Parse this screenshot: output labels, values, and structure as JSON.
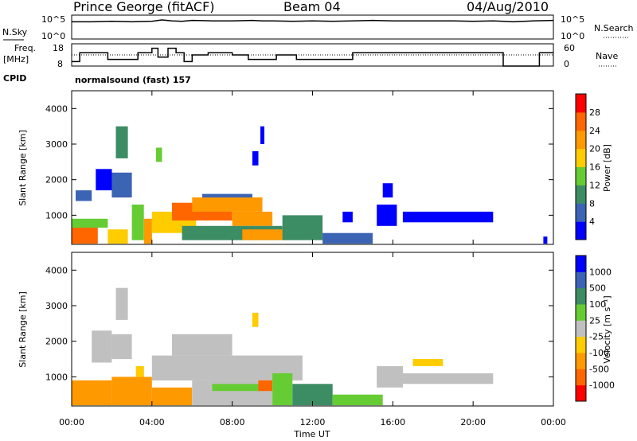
{
  "header": {
    "station": "Prince George (fitACF)",
    "beam": "Beam 04",
    "date": "04/Aug/2010"
  },
  "upper_labels": {
    "nsky": "N.Sky",
    "nsearch": "N.Search",
    "freq": "Freq.",
    "freq_unit": "[MHz]",
    "nave": "Nave",
    "cpid": "CPID",
    "cpid_value": "normalsound (fast) 157",
    "noise_left_top": "10^5",
    "noise_left_bot": "10^0",
    "noise_right_top": "10^5",
    "noise_right_bot": "10^0",
    "freq_top": "18",
    "freq_bot": "8",
    "nave_top": "60",
    "nave_bot": "0"
  },
  "colors": {
    "power": [
      "#0000ff",
      "#3c64b4",
      "#3c8c64",
      "#66cc33",
      "#ffcc00",
      "#ff9900",
      "#ff6600",
      "#ff0000"
    ],
    "velocity": [
      "#ff0000",
      "#ff6600",
      "#ff9900",
      "#ffcc00",
      "#c0c0c0",
      "#66cc33",
      "#3c8c64",
      "#3c64b4",
      "#0000ff"
    ],
    "noise_line": "#000000"
  },
  "chart_data": [
    {
      "type": "line",
      "name": "noise-and-frequency-strip",
      "x_hours": [
        0,
        1,
        2,
        3,
        4,
        4.5,
        5,
        5.5,
        6,
        7,
        8,
        9,
        9.5,
        10,
        11,
        12,
        13,
        14,
        15,
        16,
        17,
        18,
        19,
        20,
        21,
        21.5,
        22,
        23,
        24
      ],
      "nsky_log10": [
        3.6,
        3.6,
        3.7,
        3.6,
        3.7,
        4.0,
        3.8,
        3.7,
        3.9,
        3.8,
        3.8,
        3.9,
        3.8,
        3.8,
        3.7,
        3.8,
        3.7,
        3.8,
        3.9,
        3.8,
        3.8,
        3.8,
        3.8,
        3.7,
        3.8,
        3.7,
        3.6,
        3.8,
        3.9
      ],
      "freq_step": [
        {
          "x0": 0,
          "x1": 0.4,
          "mhz": 10
        },
        {
          "x0": 0.4,
          "x1": 1.8,
          "mhz": 14
        },
        {
          "x0": 1.8,
          "x1": 2.6,
          "mhz": 11
        },
        {
          "x0": 2.6,
          "x1": 3.3,
          "mhz": 11
        },
        {
          "x0": 3.3,
          "x1": 4.0,
          "mhz": 14
        },
        {
          "x0": 4.0,
          "x1": 4.3,
          "mhz": 16
        },
        {
          "x0": 4.3,
          "x1": 4.8,
          "mhz": 12
        },
        {
          "x0": 4.8,
          "x1": 5.2,
          "mhz": 16
        },
        {
          "x0": 5.2,
          "x1": 5.6,
          "mhz": 14
        },
        {
          "x0": 5.6,
          "x1": 6.0,
          "mhz": 10
        },
        {
          "x0": 6.0,
          "x1": 6.8,
          "mhz": 13
        },
        {
          "x0": 6.8,
          "x1": 8.0,
          "mhz": 14
        },
        {
          "x0": 8.0,
          "x1": 8.8,
          "mhz": 13
        },
        {
          "x0": 8.8,
          "x1": 10.2,
          "mhz": 11
        },
        {
          "x0": 10.2,
          "x1": 11.2,
          "mhz": 13
        },
        {
          "x0": 11.2,
          "x1": 13.0,
          "mhz": 11
        },
        {
          "x0": 13.0,
          "x1": 14.0,
          "mhz": 11
        },
        {
          "x0": 14.0,
          "x1": 15.5,
          "mhz": 14
        },
        {
          "x0": 15.5,
          "x1": 17.5,
          "mhz": 14
        },
        {
          "x0": 17.5,
          "x1": 21.5,
          "mhz": 14
        },
        {
          "x0": 21.5,
          "x1": 23.3,
          "mhz": 8
        },
        {
          "x0": 23.3,
          "x1": 24,
          "mhz": 14
        }
      ],
      "nave_level": 30,
      "ylim_freq": [
        8,
        18
      ],
      "ylim_nave": [
        0,
        60
      ]
    },
    {
      "type": "heatmap",
      "name": "power",
      "xlabel": "",
      "ylabel": "Slant Range [km]",
      "xlim_hours": [
        0,
        24
      ],
      "ylim_km": [
        180,
        4500
      ],
      "x_ticks": [
        "00:00",
        "04:00",
        "08:00",
        "12:00",
        "16:00",
        "20:00",
        "00:00"
      ],
      "y_ticks": [
        1000,
        2000,
        3000,
        4000
      ],
      "colorbar_label": "Power [dB]",
      "colorbar_ticks": [
        "4",
        "8",
        "12",
        "16",
        "20",
        "24",
        "28"
      ],
      "regions": [
        {
          "x0": 0.0,
          "x1": 1.3,
          "y0": 200,
          "y1": 650,
          "level": 28
        },
        {
          "x0": 0.0,
          "x1": 1.8,
          "y0": 650,
          "y1": 900,
          "level": 16
        },
        {
          "x0": 0.2,
          "x1": 1.0,
          "y0": 1400,
          "y1": 1700,
          "level": 8
        },
        {
          "x0": 1.2,
          "x1": 2.0,
          "y0": 1700,
          "y1": 2300,
          "level": 4
        },
        {
          "x0": 1.8,
          "x1": 2.8,
          "y0": 200,
          "y1": 600,
          "level": 20
        },
        {
          "x0": 2.0,
          "x1": 3.0,
          "y0": 1500,
          "y1": 2200,
          "level": 8
        },
        {
          "x0": 2.2,
          "x1": 2.8,
          "y0": 2600,
          "y1": 3500,
          "level": 12
        },
        {
          "x0": 3.0,
          "x1": 3.6,
          "y0": 300,
          "y1": 1300,
          "level": 16
        },
        {
          "x0": 3.6,
          "x1": 4.0,
          "y0": 200,
          "y1": 900,
          "level": 24
        },
        {
          "x0": 4.0,
          "x1": 6.2,
          "y0": 500,
          "y1": 1100,
          "level": 20
        },
        {
          "x0": 4.2,
          "x1": 4.5,
          "y0": 2500,
          "y1": 2900,
          "level": 16
        },
        {
          "x0": 5.0,
          "x1": 8.0,
          "y0": 850,
          "y1": 1350,
          "level": 28
        },
        {
          "x0": 6.0,
          "x1": 9.5,
          "y0": 1100,
          "y1": 1500,
          "level": 24
        },
        {
          "x0": 6.5,
          "x1": 9.0,
          "y0": 1500,
          "y1": 1600,
          "level": 8
        },
        {
          "x0": 8.0,
          "x1": 10.0,
          "y0": 700,
          "y1": 1100,
          "level": 24
        },
        {
          "x0": 5.5,
          "x1": 10.5,
          "y0": 300,
          "y1": 700,
          "level": 12
        },
        {
          "x0": 8.5,
          "x1": 10.8,
          "y0": 300,
          "y1": 600,
          "level": 24
        },
        {
          "x0": 9.0,
          "x1": 9.3,
          "y0": 2400,
          "y1": 2800,
          "level": 4
        },
        {
          "x0": 9.4,
          "x1": 9.6,
          "y0": 3000,
          "y1": 3500,
          "level": 4
        },
        {
          "x0": 10.5,
          "x1": 12.5,
          "y0": 300,
          "y1": 1000,
          "level": 12
        },
        {
          "x0": 12.5,
          "x1": 15.0,
          "y0": 200,
          "y1": 500,
          "level": 8
        },
        {
          "x0": 13.5,
          "x1": 14.0,
          "y0": 800,
          "y1": 1100,
          "level": 4
        },
        {
          "x0": 15.2,
          "x1": 16.2,
          "y0": 700,
          "y1": 1300,
          "level": 4
        },
        {
          "x0": 15.5,
          "x1": 16.0,
          "y0": 1500,
          "y1": 1900,
          "level": 4
        },
        {
          "x0": 16.5,
          "x1": 21.0,
          "y0": 800,
          "y1": 1100,
          "level": 4
        },
        {
          "x0": 23.5,
          "x1": 23.7,
          "y0": 200,
          "y1": 400,
          "level": 4
        }
      ]
    },
    {
      "type": "heatmap",
      "name": "velocity",
      "xlabel": "Time UT",
      "ylabel": "Slant Range [km]",
      "xlim_hours": [
        0,
        24
      ],
      "ylim_km": [
        180,
        4500
      ],
      "x_ticks": [
        "00:00",
        "04:00",
        "08:00",
        "12:00",
        "16:00",
        "20:00",
        "00:00"
      ],
      "y_ticks": [
        1000,
        2000,
        3000,
        4000
      ],
      "colorbar_label": "Velocity [m s⁻¹]",
      "colorbar_ticks": [
        "-1000",
        "-500",
        "-100",
        "-25",
        "25",
        "100",
        "500",
        "1000"
      ],
      "regions": [
        {
          "x0": 0.0,
          "x1": 2.0,
          "y0": 200,
          "y1": 900,
          "level": 2
        },
        {
          "x0": 1.0,
          "x1": 2.0,
          "y0": 1400,
          "y1": 2300,
          "level": 4
        },
        {
          "x0": 2.0,
          "x1": 3.0,
          "y0": 1500,
          "y1": 2200,
          "level": 4
        },
        {
          "x0": 2.2,
          "x1": 2.8,
          "y0": 2600,
          "y1": 3500,
          "level": 4
        },
        {
          "x0": 2.0,
          "x1": 4.0,
          "y0": 200,
          "y1": 1000,
          "level": 2
        },
        {
          "x0": 3.2,
          "x1": 3.6,
          "y0": 1000,
          "y1": 1300,
          "level": 3
        },
        {
          "x0": 4.0,
          "x1": 6.0,
          "y0": 200,
          "y1": 700,
          "level": 2
        },
        {
          "x0": 4.0,
          "x1": 11.5,
          "y0": 900,
          "y1": 1600,
          "level": 4
        },
        {
          "x0": 5.0,
          "x1": 8.0,
          "y0": 1600,
          "y1": 2200,
          "level": 4
        },
        {
          "x0": 6.0,
          "x1": 10.0,
          "y0": 200,
          "y1": 900,
          "level": 4
        },
        {
          "x0": 7.0,
          "x1": 9.5,
          "y0": 600,
          "y1": 800,
          "level": 5
        },
        {
          "x0": 9.0,
          "x1": 9.3,
          "y0": 2400,
          "y1": 2800,
          "level": 3
        },
        {
          "x0": 9.3,
          "x1": 10.0,
          "y0": 600,
          "y1": 900,
          "level": 1
        },
        {
          "x0": 10.0,
          "x1": 11.0,
          "y0": 200,
          "y1": 1100,
          "level": 5
        },
        {
          "x0": 11.0,
          "x1": 13.0,
          "y0": 200,
          "y1": 800,
          "level": 6
        },
        {
          "x0": 13.0,
          "x1": 15.5,
          "y0": 200,
          "y1": 500,
          "level": 5
        },
        {
          "x0": 15.2,
          "x1": 16.5,
          "y0": 700,
          "y1": 1300,
          "level": 4
        },
        {
          "x0": 16.5,
          "x1": 21.0,
          "y0": 800,
          "y1": 1100,
          "level": 4
        },
        {
          "x0": 17.0,
          "x1": 18.5,
          "y0": 1300,
          "y1": 1500,
          "level": 3
        }
      ]
    }
  ]
}
